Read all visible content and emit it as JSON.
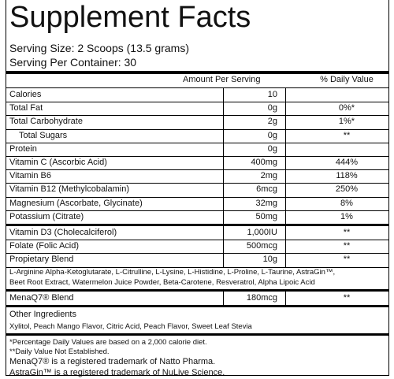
{
  "header": {
    "title": "Supplement Facts",
    "serving_size": "Serving Size: 2 Scoops (13.5 grams)",
    "servings_per_container": "Serving Per Container: 30"
  },
  "table": {
    "columns": [
      "Amount Per Serving",
      "% Daily Value"
    ],
    "rows": [
      {
        "name": "Calories",
        "amount": "10"
      },
      {
        "name": "Total Fat",
        "amount": "0g",
        "dv": "0%*"
      },
      {
        "name": "Total Carbohydrate",
        "amount": "2g",
        "dv": "1%*"
      },
      {
        "name": "Total Sugars",
        "amount": "0g",
        "dv": "**",
        "indent": true
      },
      {
        "name": "Protein",
        "amount": "0g"
      },
      {
        "name": "Vitamin C (Ascorbic Acid)",
        "amount": "400mg",
        "dv": "444%"
      },
      {
        "name": "Vitamin B6",
        "amount": "2mg",
        "dv": "118%"
      },
      {
        "name": "Vitamin B12 (Methylcobalamin)",
        "amount": "6mcg",
        "dv": "250%"
      },
      {
        "name": "Magnesium (Ascorbate, Glycinate)",
        "amount": "32mg",
        "dv": "8%"
      },
      {
        "name": "Potassium (Citrate)",
        "amount": "50mg",
        "dv": "1%"
      }
    ],
    "rows2": [
      {
        "name": "Vitamin D3 (Cholecalciferol)",
        "amount": "1,000IU",
        "dv": "**"
      },
      {
        "name": "Folate (Folic Acid)",
        "amount": "500mcg",
        "dv": "**"
      },
      {
        "name": "Propietary Blend",
        "amount": "10g",
        "dv": "**"
      }
    ],
    "blend_ingredients": [
      "L-Arginine Alpha-Ketoglutarate, L-Citrulline, L-Lysine, L-Histidine, L-Proline, L-Taurine, AstraGin™,",
      "Beet Root Extract, Watermelon Juice Powder, Beta-Carotene, Resveratrol, Alpha Lipoic Acid"
    ],
    "menaq7": {
      "name": "MenaQ7® Blend",
      "amount": "180mcg",
      "dv": "**"
    }
  },
  "other_ingredients": {
    "title": "Other Ingredients",
    "list": "Xylitol, Peach Mango Flavor, Citric Acid, Peach Flavor, Sweet Leaf Stevia"
  },
  "footnotes": [
    "*Percentage Daily Values are based on a 2,000 calorie diet.",
    "**Daily Value Not Established.",
    "MenaQ7® is a registered trademark of Natto Pharma.",
    "AstraGin™ is a registered trademark of NuLive Science."
  ]
}
